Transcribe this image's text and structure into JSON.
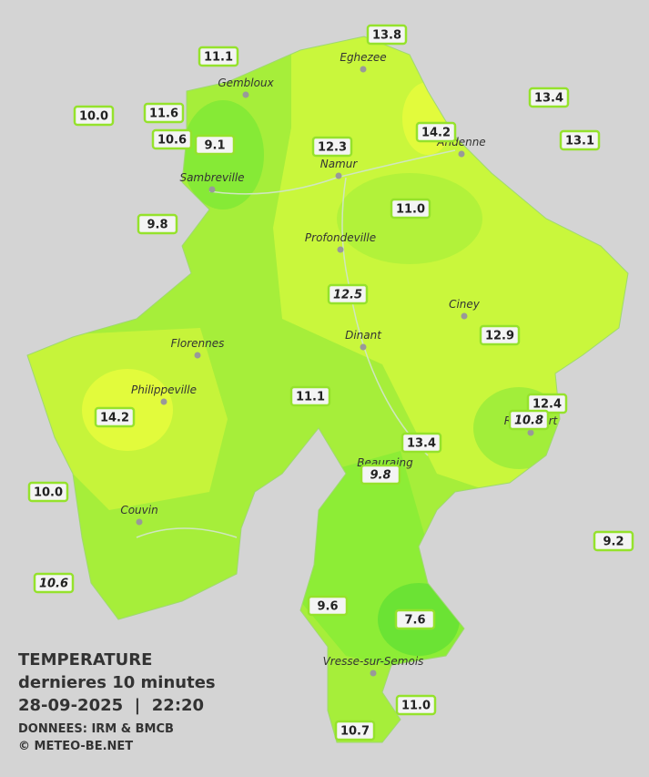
{
  "cities": [
    "Eghezee",
    "Gembloux",
    "Andenne",
    "Namur",
    "Sambreville",
    "Profondeville",
    "Ciney",
    "Dinant",
    "Florennes",
    "Philippeville",
    "Rochefort",
    "Beauraing",
    "Couvin",
    "Vresse-sur-Semois"
  ],
  "stations": [
    "13.8",
    "11.1",
    "10.0",
    "11.6",
    "10.6",
    "9.1",
    "12.3",
    "14.2",
    "13.4",
    "13.1",
    "9.8",
    "11.0",
    "12.5",
    "12.9",
    "11.1",
    "12.4",
    "10.8",
    "14.2",
    "13.4",
    "9.8",
    "10.0",
    "9.2",
    "10.6",
    "9.6",
    "7.6",
    "11.0",
    "10.7"
  ],
  "legend": {
    "title": "TEMPERATURE",
    "subtitle": "dernieres 10 minutes",
    "datetime": "28-09-2025  |  22:20",
    "source": "DONNEES: IRM & BMCB",
    "copyright": "© METEO-BE.NET"
  }
}
